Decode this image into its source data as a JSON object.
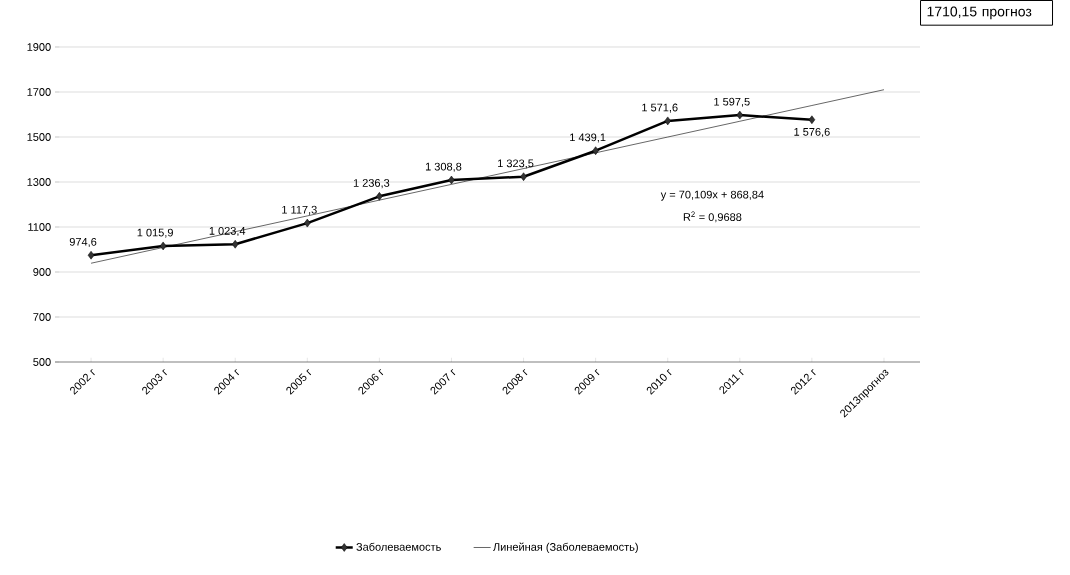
{
  "chart_data": {
    "type": "line",
    "categories": [
      "2002 г",
      "2003 г",
      "2004 г",
      "2005 г",
      "2006 г",
      "2007 г",
      "2008 г",
      "2009 г",
      "2010 г",
      "2011 г",
      "2012 г",
      "2013прогноз"
    ],
    "series": [
      {
        "name": "Заболеваемость",
        "color": "#000000",
        "values": [
          974.6,
          1015.9,
          1023.4,
          1117.3,
          1236.3,
          1308.8,
          1323.5,
          1439.1,
          1571.6,
          1597.5,
          1576.6,
          null
        ],
        "value_labels": [
          "974,6",
          "1 015,9",
          "1 023,4",
          "1 117,3",
          "1 236,3",
          "1 308,8",
          "1 323,5",
          "1 439,1",
          "1 571,6",
          "1 597,5",
          "1 576,6",
          null
        ]
      },
      {
        "name": "Линейная (Заболеваемость)",
        "color": "#000000",
        "marker": "none",
        "values": [
          938.9,
          1009.1,
          1079.2,
          1149.3,
          1219.4,
          1289.5,
          1359.6,
          1429.7,
          1499.8,
          1569.9,
          1640.0,
          1710.15
        ]
      }
    ],
    "ylim": [
      500,
      1900
    ],
    "yticks": [
      500,
      700,
      900,
      1100,
      1300,
      1500,
      1700,
      1900
    ],
    "grid": "y",
    "legend": "bottom",
    "marker": "diamond",
    "line_style": "solid",
    "annotations": [
      "y = 70,109x + 868,84",
      "R$^{2}$ = 0,9688",
      "1710,15 прогноз"
    ]
  }
}
